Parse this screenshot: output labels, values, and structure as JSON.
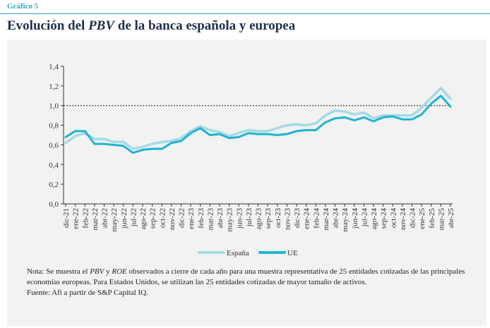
{
  "header": {
    "figure_label": "Gráfico 5",
    "title_pre": "Evolución del ",
    "title_em": "PBV",
    "title_post": " de la banca española y europea"
  },
  "chart_data": {
    "type": "line",
    "categories": [
      "dic-21",
      "ene-22",
      "feb-22",
      "mar-22",
      "abr-22",
      "may-22",
      "jun-22",
      "jul-22",
      "ago-22",
      "sep-22",
      "oct-22",
      "nov-22",
      "dic-22",
      "ene-23",
      "feb-23",
      "mar-23",
      "abr-23",
      "may-23",
      "jun-23",
      "jul-23",
      "ago-23",
      "sep-23",
      "oct-23",
      "nov-23",
      "dic-23",
      "ene-24",
      "feb-24",
      "mar-24",
      "abr-24",
      "may-24",
      "jun-24",
      "jul-24",
      "ago-24",
      "sep-24",
      "oct-24",
      "nov-24",
      "dic-24",
      "ene-25",
      "feb-25",
      "mar-25",
      "abr-25"
    ],
    "series": [
      {
        "name": "España",
        "color": "#a3dbe4",
        "values": [
          0.62,
          0.69,
          0.72,
          0.66,
          0.66,
          0.63,
          0.63,
          0.56,
          0.58,
          0.61,
          0.63,
          0.64,
          0.67,
          0.74,
          0.79,
          0.75,
          0.73,
          0.69,
          0.72,
          0.75,
          0.74,
          0.74,
          0.77,
          0.8,
          0.81,
          0.8,
          0.82,
          0.9,
          0.95,
          0.94,
          0.91,
          0.93,
          0.87,
          0.9,
          0.9,
          0.9,
          0.9,
          0.98,
          1.08,
          1.18,
          1.07
        ]
      },
      {
        "name": "UE",
        "color": "#1fb3d2",
        "values": [
          0.68,
          0.74,
          0.74,
          0.61,
          0.61,
          0.6,
          0.59,
          0.52,
          0.55,
          0.56,
          0.56,
          0.62,
          0.64,
          0.72,
          0.77,
          0.7,
          0.71,
          0.67,
          0.68,
          0.72,
          0.71,
          0.71,
          0.7,
          0.71,
          0.74,
          0.75,
          0.75,
          0.83,
          0.87,
          0.88,
          0.85,
          0.88,
          0.84,
          0.88,
          0.89,
          0.86,
          0.86,
          0.91,
          1.02,
          1.1,
          0.99
        ]
      }
    ],
    "reference_line": 1.0,
    "ylim": [
      0,
      1.4
    ],
    "yticks": [
      0.0,
      0.2,
      0.4,
      0.6,
      0.8,
      1.0,
      1.2,
      1.4
    ],
    "ytick_labels": [
      "0,0",
      "0,2",
      "0,4",
      "0,6",
      "0,8",
      "1,0",
      "1,2",
      "1,4"
    ],
    "legend_position": "bottom-center",
    "grid": false
  },
  "notes": {
    "line1_a": "Nota: Se muestra el ",
    "line1_em1": "PBV",
    "line1_b": " y ",
    "line1_em2": "ROE",
    "line1_c": " observados a cierre de cada año para una muestra representativa de 25 entidades cotizadas de las principales economías europeas. Para Estados Unidos, se utilizan las 25 entidades cotizadas de mayor tamaño de activos.",
    "source": "Fuente: Afi a partir de S&P Capital IQ."
  }
}
